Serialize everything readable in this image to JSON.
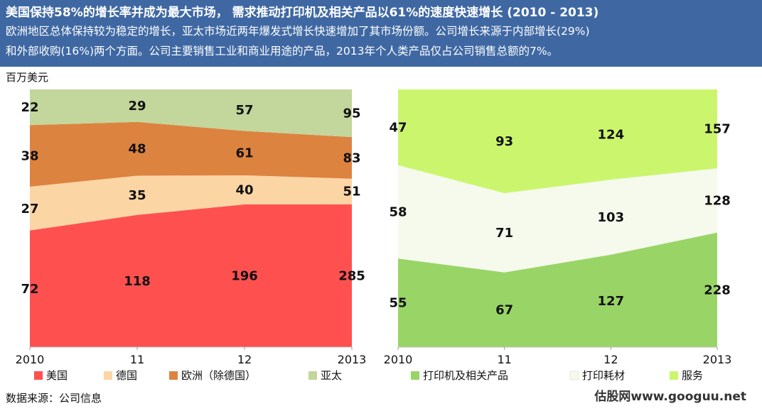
{
  "header": {
    "title": "美国保持58%的增长率并成为最大市场， 需求推动打印机及相关产品以61%的速度快速增长 (2010 - 2013)",
    "desc_line1": "欧洲地区总体保持较为稳定的增长，亚太市场近两年爆发式增长快速增加了其市场份额。公司增长来源于内部增长(29%)",
    "desc_line2": "和外部收购(16%)两个方面。公司主要销售工业和商业用途的产品，2013年个人类产品仅占公司销售总额的7%。"
  },
  "unit_label": "百万美元",
  "source": "数据来源：公司信息",
  "brand": "估股网www.googuu.net",
  "chart_data": [
    {
      "type": "area",
      "stacked": true,
      "normalized": true,
      "unit": "百万美元",
      "x": [
        "2010",
        "11",
        "12",
        "2013"
      ],
      "series": [
        {
          "name": "美国",
          "values": [
            72,
            118,
            196,
            285
          ],
          "color": "#ff5050"
        },
        {
          "name": "德国",
          "values": [
            27,
            35,
            40,
            51
          ],
          "color": "#fcd5a5"
        },
        {
          "name": "欧洲（除德国）",
          "values": [
            38,
            48,
            61,
            83
          ],
          "color": "#dd8340"
        },
        {
          "name": "亚太",
          "values": [
            22,
            29,
            57,
            95
          ],
          "color": "#c3d69b"
        }
      ],
      "grid": false,
      "legend": "bottom"
    },
    {
      "type": "area",
      "stacked": true,
      "normalized": true,
      "x": [
        "2010",
        "11",
        "12",
        "2013"
      ],
      "series": [
        {
          "name": "打印机及相关产品",
          "values": [
            55,
            67,
            127,
            228
          ],
          "color": "#99d566"
        },
        {
          "name": "打印耗材",
          "values": [
            58,
            71,
            103,
            128
          ],
          "color": "#f5faed"
        },
        {
          "name": "服务",
          "values": [
            47,
            93,
            124,
            157
          ],
          "color": "#ccf56e"
        }
      ],
      "grid": false,
      "legend": "bottom"
    }
  ]
}
